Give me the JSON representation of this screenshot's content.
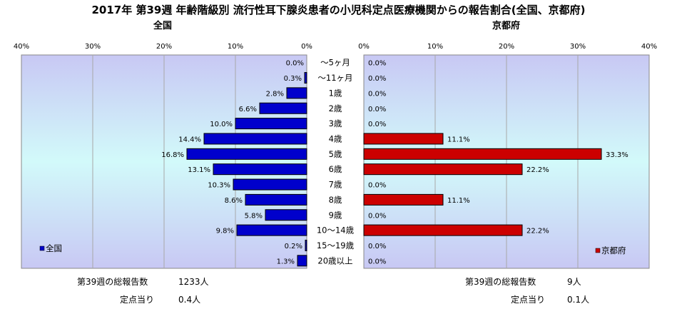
{
  "title": "2017年 第39週 年齢階級別 流行性耳下腺炎患者の小児科定点医療機関からの報告割合(全国、京都府)",
  "chart_data": {
    "type": "bar",
    "categories": [
      "～5ヶ月",
      "～11ヶ月",
      "1歳",
      "2歳",
      "3歳",
      "4歳",
      "5歳",
      "6歳",
      "7歳",
      "8歳",
      "9歳",
      "10～14歳",
      "15～19歳",
      "20歳以上"
    ],
    "xlim": [
      0,
      40
    ],
    "ticks": [
      "0%",
      "10%",
      "20%",
      "30%",
      "40%"
    ],
    "series": [
      {
        "name": "全国",
        "panel_title": "全国",
        "color": "#0000cc",
        "values": [
          0.0,
          0.3,
          2.8,
          6.6,
          10.0,
          14.4,
          16.8,
          13.1,
          10.3,
          8.6,
          5.8,
          9.8,
          0.2,
          1.3
        ],
        "labels": [
          "0.0%",
          "0.3%",
          "2.8%",
          "6.6%",
          "10.0%",
          "14.4%",
          "16.8%",
          "13.1%",
          "10.3%",
          "8.6%",
          "5.8%",
          "9.8%",
          "0.2%",
          "1.3%"
        ]
      },
      {
        "name": "京都府",
        "panel_title": "京都府",
        "color": "#cc0000",
        "values": [
          0.0,
          0.0,
          0.0,
          0.0,
          0.0,
          11.1,
          33.3,
          22.2,
          0.0,
          11.1,
          0.0,
          22.2,
          0.0,
          0.0
        ],
        "labels": [
          "0.0%",
          "0.0%",
          "0.0%",
          "0.0%",
          "0.0%",
          "11.1%",
          "33.3%",
          "22.2%",
          "0.0%",
          "11.1%",
          "0.0%",
          "22.2%",
          "0.0%",
          "0.0%"
        ]
      }
    ],
    "grid": true,
    "legend_position": "bottom-left (全国) / bottom-right (京都府)"
  },
  "footer": {
    "national": {
      "total_label": "第39週の総報告数",
      "total_value": "1233人",
      "per_label": "定点当り",
      "per_value": "0.4人"
    },
    "kyoto": {
      "total_label": "第39週の総報告数",
      "total_value": "9人",
      "per_label": "定点当り",
      "per_value": "0.1人"
    }
  },
  "colors": {
    "plot_bg_top": "#c8c8f4",
    "plot_bg_mid": "#d2fafa",
    "plot_bg_bottom": "#c8c8f4"
  }
}
